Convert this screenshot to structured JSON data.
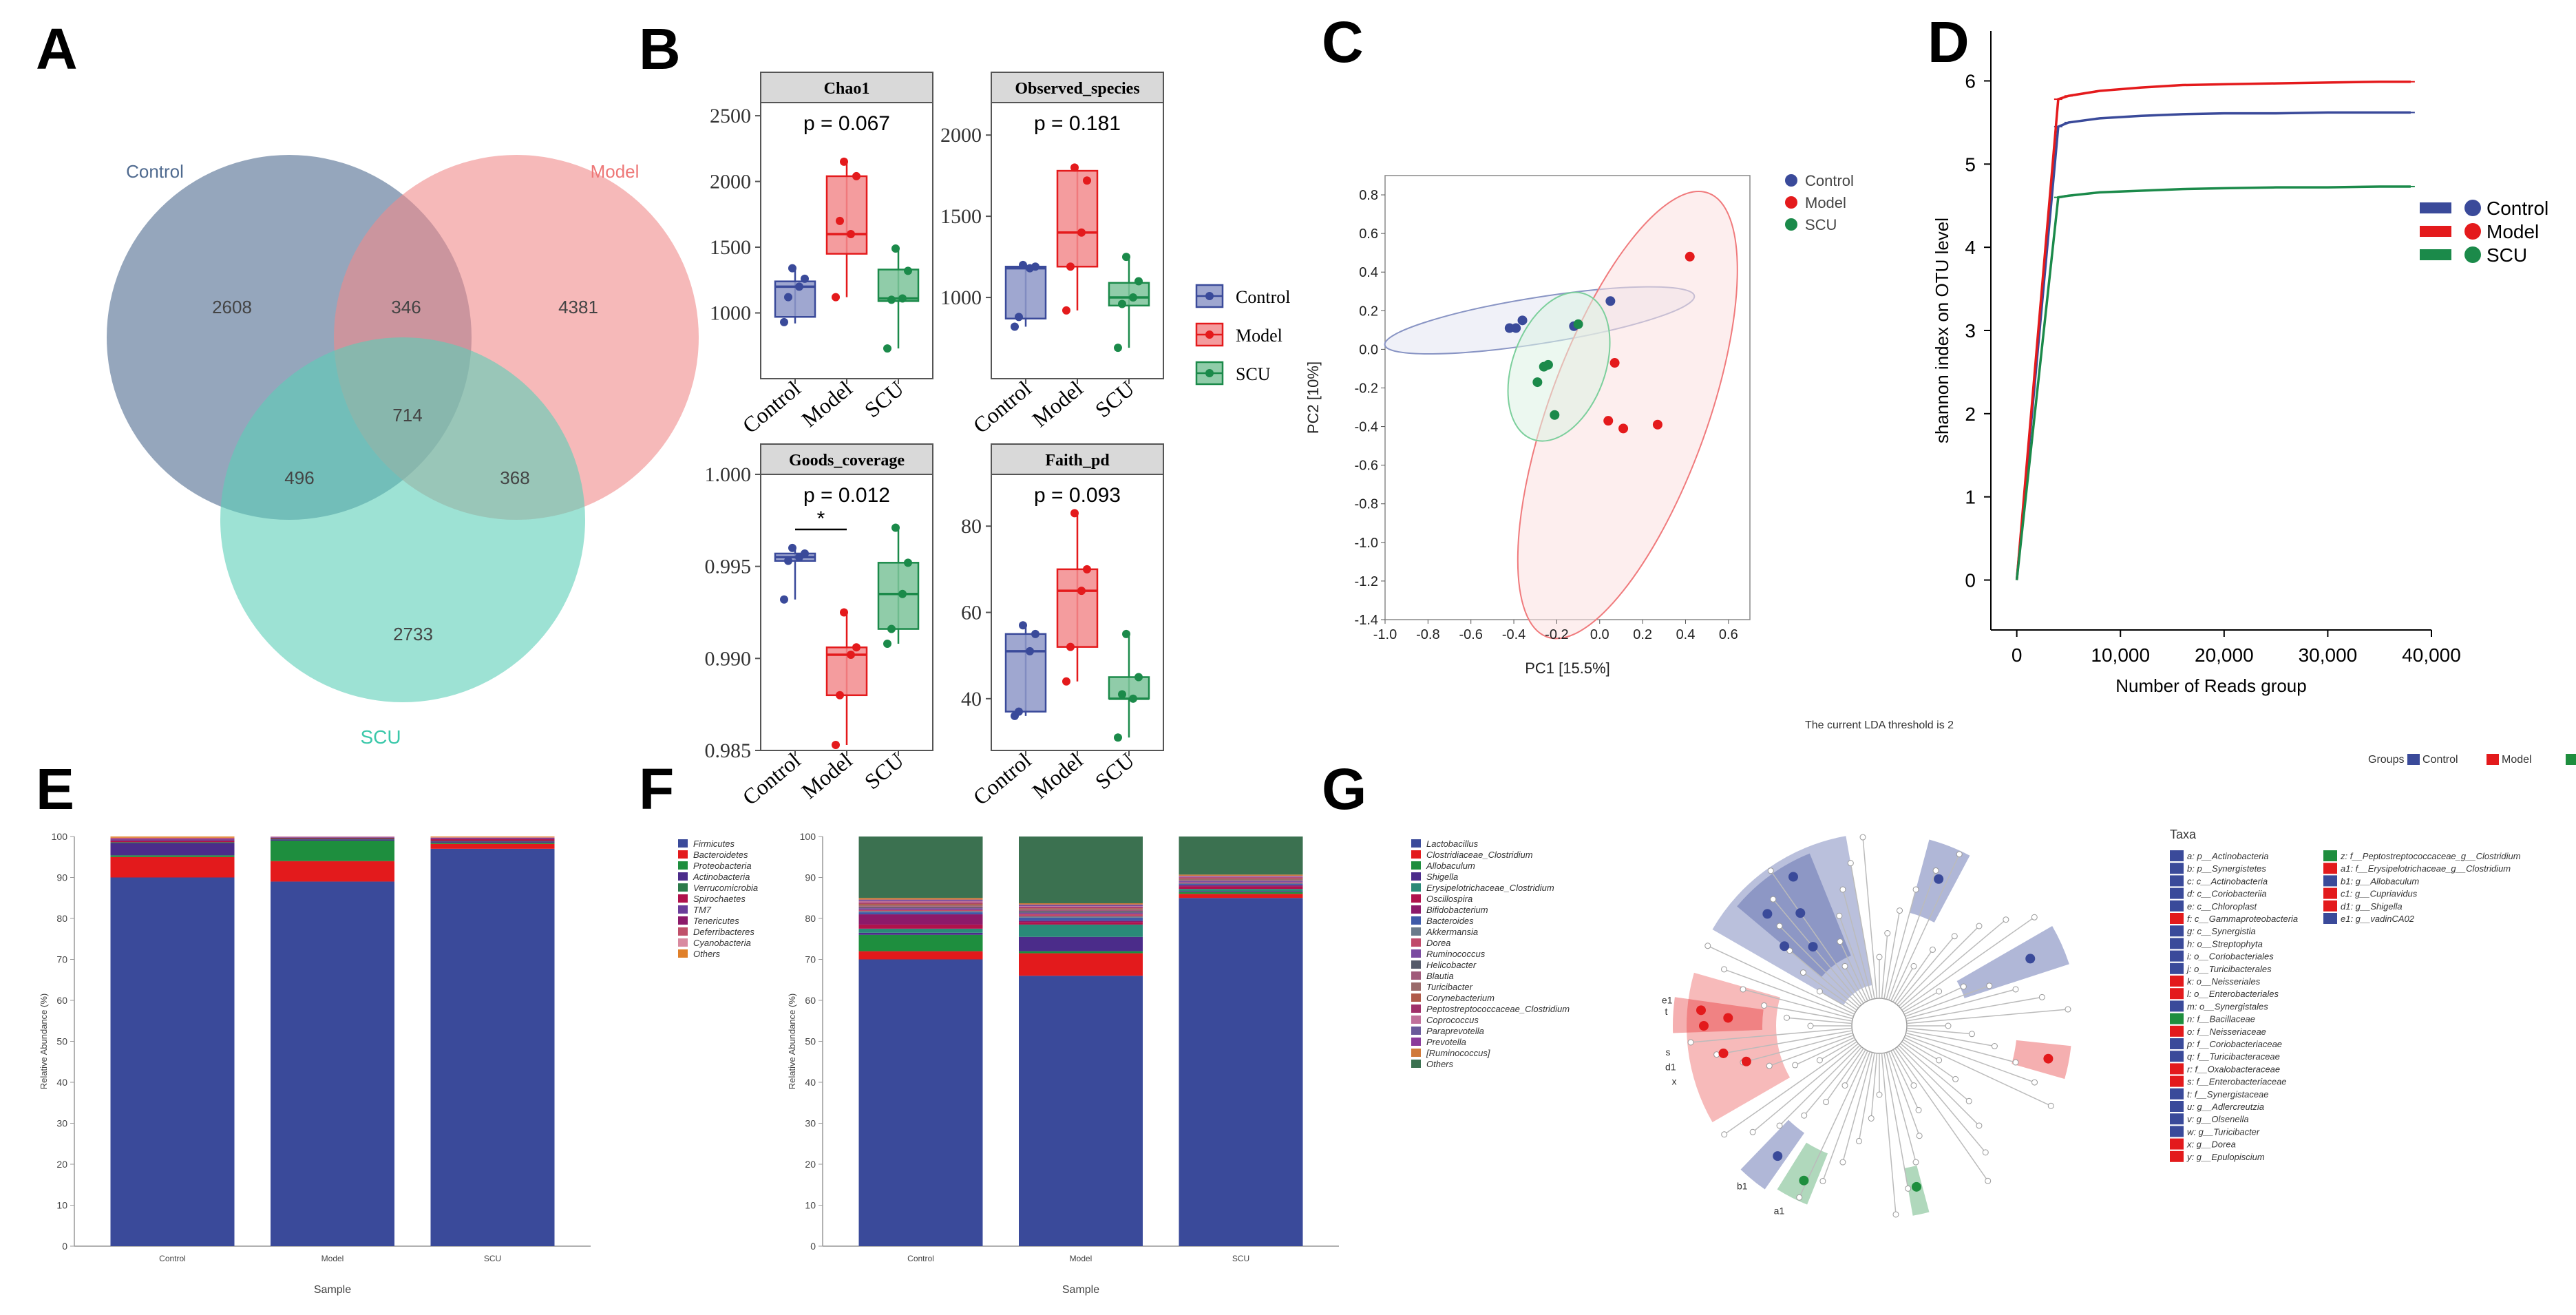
{
  "colors": {
    "control": "#3a4a9a",
    "model": "#e41a1c",
    "scu": "#1b8a4a",
    "venn_control": "#4f6a8f",
    "venn_model": "#f08a8a",
    "venn_scu": "#5ccfb8"
  },
  "panels": {
    "A": {
      "letter": "A"
    },
    "B": {
      "letter": "B"
    },
    "C": {
      "letter": "C"
    },
    "D": {
      "letter": "D"
    },
    "E": {
      "letter": "E"
    },
    "F": {
      "letter": "F"
    },
    "G": {
      "letter": "G"
    }
  },
  "venn": {
    "labels": {
      "control": "Control",
      "model": "Model",
      "scu": "SCU"
    },
    "counts": {
      "control_only": "2608",
      "model_only": "4381",
      "scu_only": "2733",
      "control_model": "346",
      "control_scu": "496",
      "model_scu": "368",
      "all": "714"
    }
  },
  "chart_data": [
    {
      "type": "box",
      "panel": "B",
      "title": "Chao1",
      "pvalue": "p = 0.067",
      "categories": [
        "Control",
        "Model",
        "SCU"
      ],
      "ylim": [
        500,
        2600
      ],
      "yticks": [
        1000,
        1500,
        2000,
        2500
      ],
      "boxes": [
        {
          "min": 920,
          "q1": 970,
          "median": 1200,
          "q3": 1240,
          "max": 1340,
          "points": [
            930,
            1200,
            1260,
            1340,
            1120
          ]
        },
        {
          "min": 1120,
          "q1": 1450,
          "median": 1600,
          "q3": 2040,
          "max": 2150,
          "points": [
            1120,
            1600,
            2040,
            2150,
            1700
          ]
        },
        {
          "min": 730,
          "q1": 1090,
          "median": 1110,
          "q3": 1330,
          "max": 1490,
          "points": [
            730,
            1110,
            1320,
            1490,
            1100
          ]
        }
      ]
    },
    {
      "type": "box",
      "panel": "B",
      "title": "Observed_species",
      "pvalue": "p = 0.181",
      "categories": [
        "Control",
        "Model",
        "SCU"
      ],
      "ylim": [
        500,
        2200
      ],
      "yticks": [
        1000,
        1500,
        2000
      ],
      "boxes": [
        {
          "min": 820,
          "q1": 870,
          "median": 1180,
          "q3": 1190,
          "max": 1200,
          "points": [
            820,
            1180,
            1190,
            1200,
            880
          ]
        },
        {
          "min": 920,
          "q1": 1190,
          "median": 1400,
          "q3": 1780,
          "max": 1800,
          "points": [
            920,
            1400,
            1720,
            1800,
            1190
          ]
        },
        {
          "min": 690,
          "q1": 950,
          "median": 1000,
          "q3": 1090,
          "max": 1250,
          "points": [
            690,
            1000,
            1100,
            1250,
            960
          ]
        }
      ]
    },
    {
      "type": "box",
      "panel": "B",
      "title": "Goods_coverage",
      "pvalue": "p = 0.012",
      "sig": "*",
      "categories": [
        "Control",
        "Model",
        "SCU"
      ],
      "ylim": [
        0.985,
        1.0
      ],
      "yticks": [
        0.985,
        0.99,
        0.995,
        1.0
      ],
      "boxes": [
        {
          "min": 0.9932,
          "q1": 0.9953,
          "median": 0.9955,
          "q3": 0.9957,
          "max": 0.996,
          "points": [
            0.9932,
            0.9955,
            0.9957,
            0.996,
            0.9953
          ]
        },
        {
          "min": 0.9853,
          "q1": 0.988,
          "median": 0.9902,
          "q3": 0.9906,
          "max": 0.9925,
          "points": [
            0.9853,
            0.9902,
            0.9906,
            0.9925,
            0.988
          ]
        },
        {
          "min": 0.9908,
          "q1": 0.9916,
          "median": 0.9935,
          "q3": 0.9952,
          "max": 0.9971,
          "points": [
            0.9908,
            0.9935,
            0.9952,
            0.9971,
            0.9916
          ]
        }
      ]
    },
    {
      "type": "box",
      "panel": "B",
      "title": "Faith_pd",
      "pvalue": "p = 0.093",
      "categories": [
        "Control",
        "Model",
        "SCU"
      ],
      "ylim": [
        28,
        92
      ],
      "yticks": [
        40,
        60,
        80
      ],
      "boxes": [
        {
          "min": 36,
          "q1": 37,
          "median": 51,
          "q3": 55,
          "max": 57,
          "points": [
            36,
            51,
            55,
            57,
            37
          ]
        },
        {
          "min": 44,
          "q1": 52,
          "median": 65,
          "q3": 70,
          "max": 83,
          "points": [
            44,
            65,
            70,
            83,
            52
          ]
        },
        {
          "min": 31,
          "q1": 40,
          "median": 40,
          "q3": 45,
          "max": 55,
          "points": [
            31,
            40,
            45,
            55,
            41
          ]
        }
      ]
    },
    {
      "type": "scatter",
      "panel": "C",
      "xlabel": "PC1 [15.5%]",
      "ylabel": "PC2 [10%]",
      "xlim": [
        -1.0,
        0.7
      ],
      "ylim": [
        -1.4,
        0.9
      ],
      "xticks": [
        -1.0,
        -0.8,
        -0.6,
        -0.4,
        -0.2,
        0.0,
        0.2,
        0.4,
        0.6
      ],
      "yticks": [
        -1.4,
        -1.2,
        -1.0,
        -0.8,
        -0.6,
        -0.4,
        -0.2,
        0.0,
        0.2,
        0.4,
        0.6,
        0.8
      ],
      "legend": [
        "Control",
        "Model",
        "SCU"
      ],
      "series": [
        {
          "name": "Control",
          "points": [
            [
              -0.42,
              0.11
            ],
            [
              -0.39,
              0.11
            ],
            [
              -0.36,
              0.15
            ],
            [
              -0.12,
              0.12
            ],
            [
              0.05,
              0.25
            ]
          ],
          "ellipse": {
            "cx": -0.28,
            "cy": 0.15,
            "rx": 0.73,
            "ry": 0.12,
            "angle": -9
          }
        },
        {
          "name": "Model",
          "points": [
            [
              0.42,
              0.48
            ],
            [
              0.07,
              -0.07
            ],
            [
              0.04,
              -0.37
            ],
            [
              0.11,
              -0.41
            ],
            [
              0.27,
              -0.39
            ]
          ],
          "ellipse": {
            "cx": 0.13,
            "cy": -0.34,
            "rx": 1.1,
            "ry": 0.41,
            "angle": -70
          }
        },
        {
          "name": "SCU",
          "points": [
            [
              -0.24,
              -0.08
            ],
            [
              -0.26,
              -0.09
            ],
            [
              -0.29,
              -0.17
            ],
            [
              -0.21,
              -0.34
            ],
            [
              -0.1,
              0.13
            ]
          ],
          "ellipse": {
            "cx": -0.19,
            "cy": -0.09,
            "rx": 0.36,
            "ry": 0.24,
            "angle": -70
          }
        }
      ]
    },
    {
      "type": "line",
      "panel": "D",
      "xlabel": "Number of  Reads group",
      "ylabel": "shannon index on OTU level",
      "xlim": [
        -2500,
        40000
      ],
      "ylim": [
        -0.6,
        6.6
      ],
      "xticks": [
        0,
        10000,
        20000,
        30000,
        40000
      ],
      "xticklabels": [
        "0",
        "10,000",
        "20,000",
        "30,000",
        "40,000"
      ],
      "yticks": [
        0,
        1,
        2,
        3,
        4,
        5,
        6
      ],
      "legend": [
        "Control",
        "Model",
        "SCU"
      ],
      "x": [
        0,
        4000,
        5000,
        8000,
        12000,
        16000,
        20000,
        25000,
        30000,
        35000,
        38000
      ],
      "series": [
        {
          "name": "Control",
          "values": [
            0,
            5.45,
            5.5,
            5.55,
            5.58,
            5.6,
            5.61,
            5.61,
            5.62,
            5.62,
            5.62
          ]
        },
        {
          "name": "Model",
          "values": [
            0,
            5.78,
            5.82,
            5.88,
            5.92,
            5.95,
            5.96,
            5.97,
            5.98,
            5.99,
            5.99
          ]
        },
        {
          "name": "SCU",
          "values": [
            0,
            4.6,
            4.62,
            4.66,
            4.68,
            4.7,
            4.71,
            4.72,
            4.72,
            4.73,
            4.73
          ]
        }
      ]
    },
    {
      "type": "stacked_bar",
      "panel": "E",
      "xlabel": "Sample",
      "ylabel": "Relative Abundance (%)",
      "ylim": [
        0,
        100
      ],
      "yticks": [
        0,
        10,
        20,
        30,
        40,
        50,
        60,
        70,
        80,
        90,
        100
      ],
      "categories": [
        "Control",
        "Model",
        "SCU"
      ],
      "series": [
        {
          "name": "Firmicutes",
          "color": "#3a4a9a",
          "values": [
            90,
            89,
            97
          ]
        },
        {
          "name": "Bacteroidetes",
          "color": "#e31a1c",
          "values": [
            5,
            5,
            1.2
          ]
        },
        {
          "name": "Proteobacteria",
          "color": "#1e8e3e",
          "values": [
            0.4,
            5,
            0.3
          ]
        },
        {
          "name": "Actinobacteria",
          "color": "#4b2c8a",
          "values": [
            3,
            0.3,
            0.3
          ]
        },
        {
          "name": "Verrucomicrobia",
          "color": "#2c7a4a",
          "values": [
            0.2,
            0.2,
            0.1
          ]
        },
        {
          "name": "Spirochaetes",
          "color": "#b0124c",
          "values": [
            0.4,
            0.2,
            0.5
          ]
        },
        {
          "name": "TM7",
          "color": "#6a3d9a",
          "values": [
            0.3,
            0.1,
            0.2
          ]
        },
        {
          "name": "Tenericutes",
          "color": "#8c1a6a",
          "values": [
            0.2,
            0.1,
            0.1
          ]
        },
        {
          "name": "Deferribacteres",
          "color": "#c0506a",
          "values": [
            0.1,
            0.05,
            0.05
          ]
        },
        {
          "name": "Cyanobacteria",
          "color": "#d98aa0",
          "values": [
            0.1,
            0.05,
            0.05
          ]
        },
        {
          "name": "Others",
          "color": "#e0802a",
          "values": [
            0.3,
            0.1,
            0.2
          ]
        }
      ]
    },
    {
      "type": "stacked_bar",
      "panel": "F",
      "xlabel": "Sample",
      "ylabel": "Relative Abundance (%)",
      "ylim": [
        0,
        100
      ],
      "yticks": [
        0,
        10,
        20,
        30,
        40,
        50,
        60,
        70,
        80,
        90,
        100
      ],
      "categories": [
        "Control",
        "Model",
        "SCU"
      ],
      "series": [
        {
          "name": "Lactobacillus",
          "color": "#3a4a9a",
          "values": [
            70,
            66,
            85
          ]
        },
        {
          "name": "Clostridiaceae_Clostridium",
          "color": "#e31a1c",
          "values": [
            2,
            5.5,
            1
          ]
        },
        {
          "name": "Allobaculum",
          "color": "#1e8e3e",
          "values": [
            4,
            0.5,
            0.5
          ]
        },
        {
          "name": "Shigella",
          "color": "#4b2c8a",
          "values": [
            0.5,
            3.5,
            0.2
          ]
        },
        {
          "name": "Erysipelotrichaceae_Clostridium",
          "color": "#2a8a78",
          "values": [
            1,
            3,
            0.5
          ]
        },
        {
          "name": "Oscillospira",
          "color": "#b0124c",
          "values": [
            1,
            0.6,
            0.6
          ]
        },
        {
          "name": "Bifidobacterium",
          "color": "#8c1a6a",
          "values": [
            2.5,
            0.3,
            0.3
          ]
        },
        {
          "name": "Bacteroides",
          "color": "#3f5aa8",
          "values": [
            0.5,
            0.8,
            0.3
          ]
        },
        {
          "name": "Akkermansia",
          "color": "#6a7a8a",
          "values": [
            0.3,
            0.3,
            0.2
          ]
        },
        {
          "name": "Dorea",
          "color": "#c04a6a",
          "values": [
            0.3,
            0.6,
            0.2
          ]
        },
        {
          "name": "Ruminococcus",
          "color": "#7a4aa0",
          "values": [
            0.4,
            0.3,
            0.3
          ]
        },
        {
          "name": "Helicobacter",
          "color": "#555a6a",
          "values": [
            0.2,
            0.4,
            0.1
          ]
        },
        {
          "name": "Blautia",
          "color": "#a05a7a",
          "values": [
            0.3,
            0.3,
            0.2
          ]
        },
        {
          "name": "Turicibacter",
          "color": "#9a6a6a",
          "values": [
            0.3,
            0.2,
            0.2
          ]
        },
        {
          "name": "Corynebacterium",
          "color": "#b05a4a",
          "values": [
            0.3,
            0.2,
            0.2
          ]
        },
        {
          "name": "Peptostreptococcaceae_Clostridium",
          "color": "#a0306a",
          "values": [
            0.3,
            0.3,
            0.2
          ]
        },
        {
          "name": "Coprococcus",
          "color": "#c0709a",
          "values": [
            0.3,
            0.2,
            0.2
          ]
        },
        {
          "name": "Paraprevotella",
          "color": "#6a5a9a",
          "values": [
            0.2,
            0.2,
            0.1
          ]
        },
        {
          "name": "Prevotella",
          "color": "#8a3a9a",
          "values": [
            0.2,
            0.2,
            0.1
          ]
        },
        {
          "name": "[Ruminococcus]",
          "color": "#d07a3a",
          "values": [
            0.4,
            0.3,
            0.3
          ]
        },
        {
          "name": "Others",
          "color": "#3b7150",
          "values": [
            15,
            16,
            10
          ]
        }
      ]
    }
  ],
  "lefse": {
    "title": "The current LDA threshold is 2",
    "groups_label": "Groups",
    "groups": [
      {
        "name": "Control",
        "color": "#3a4a9a"
      },
      {
        "name": "Model",
        "color": "#e31a1c"
      },
      {
        "name": "SCU",
        "color": "#1e8e3e"
      }
    ],
    "taxa_title": "Taxa",
    "taxa_col1": [
      {
        "label": "a: p__Actinobacteria",
        "color": "#3a4a9a"
      },
      {
        "label": "b: p__Synergistetes",
        "color": "#3a4a9a"
      },
      {
        "label": "c: c__Actinobacteria",
        "color": "#3a4a9a"
      },
      {
        "label": "d: c__Coriobacteriia",
        "color": "#3a4a9a"
      },
      {
        "label": "e: c__Chloroplast",
        "color": "#3a4a9a"
      },
      {
        "label": "f: c__Gammaproteobacteria",
        "color": "#e31a1c"
      },
      {
        "label": "g: c__Synergistia",
        "color": "#3a4a9a"
      },
      {
        "label": "h: o__Streptophyta",
        "color": "#3a4a9a"
      },
      {
        "label": "i: o__Coriobacteriales",
        "color": "#3a4a9a"
      },
      {
        "label": "j: o__Turicibacterales",
        "color": "#3a4a9a"
      },
      {
        "label": "k: o__Neisseriales",
        "color": "#e31a1c"
      },
      {
        "label": "l: o__Enterobacteriales",
        "color": "#e31a1c"
      },
      {
        "label": "m: o__Synergistales",
        "color": "#3a4a9a"
      },
      {
        "label": "n: f__Bacillaceae",
        "color": "#1e8e3e"
      },
      {
        "label": "o: f__Neisseriaceae",
        "color": "#e31a1c"
      },
      {
        "label": "p: f__Coriobacteriaceae",
        "color": "#3a4a9a"
      },
      {
        "label": "q: f__Turicibacteraceae",
        "color": "#3a4a9a"
      },
      {
        "label": "r: f__Oxalobacteraceae",
        "color": "#e31a1c"
      },
      {
        "label": "s: f__Enterobacteriaceae",
        "color": "#e31a1c"
      },
      {
        "label": "t: f__Synergistaceae",
        "color": "#3a4a9a"
      },
      {
        "label": "u: g__Adlercreutzia",
        "color": "#3a4a9a"
      },
      {
        "label": "v: g__Olsenella",
        "color": "#3a4a9a"
      },
      {
        "label": "w: g__Turicibacter",
        "color": "#3a4a9a"
      },
      {
        "label": "x: g__Dorea",
        "color": "#e31a1c"
      },
      {
        "label": "y: g__Epulopiscium",
        "color": "#e31a1c"
      }
    ],
    "taxa_col2": [
      {
        "label": "z: f__Peptostreptococcaceae_g__Clostridium",
        "color": "#1e8e3e"
      },
      {
        "label": "a1: f__Erysipelotrichaceae_g__Clostridium",
        "color": "#e31a1c"
      },
      {
        "label": "b1: g__Allobaculum",
        "color": "#3a4a9a"
      },
      {
        "label": "c1: g__Cupriavidus",
        "color": "#e31a1c"
      },
      {
        "label": "d1: g__Shigella",
        "color": "#e31a1c"
      },
      {
        "label": "e1: g__vadinCA02",
        "color": "#3a4a9a"
      }
    ],
    "tree_labels": [
      "t",
      "e1",
      "s",
      "d1",
      "x",
      "b1",
      "a1"
    ]
  }
}
